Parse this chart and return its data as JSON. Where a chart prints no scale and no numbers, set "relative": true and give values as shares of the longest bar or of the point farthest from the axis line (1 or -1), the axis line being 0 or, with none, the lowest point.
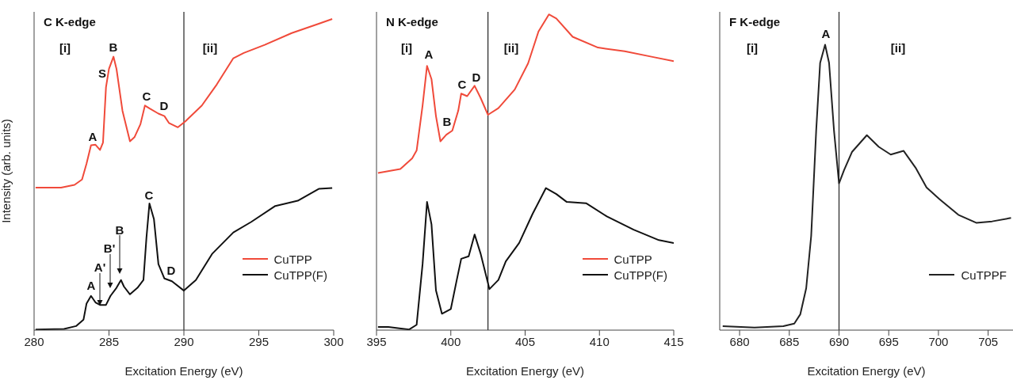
{
  "chart_data": [
    {
      "type": "line",
      "title": "C K-edge",
      "xlabel": "Excitation Energy (eV)",
      "ylabel": "Intensity (arb. units)",
      "relative": true,
      "xlim": [
        280,
        300
      ],
      "xticks": [
        280,
        285,
        290,
        295,
        300
      ],
      "legend": "bottom right",
      "line_style": "solid",
      "marker": "none",
      "series": [
        {
          "name": "CuTPP",
          "color": "#f04a3a",
          "x": [
            280.1,
            281.8,
            282.7,
            283.2,
            283.5,
            283.8,
            284.1,
            284.4,
            284.6,
            284.8,
            285.0,
            285.3,
            285.5,
            285.9,
            286.4,
            286.7,
            287.1,
            287.4,
            287.7,
            288.3,
            288.7,
            289.0,
            289.6,
            290.1,
            291.2,
            292.2,
            293.3,
            294.0,
            295.4,
            297.2,
            299.0,
            299.9
          ],
          "values": [
            0.458,
            0.458,
            0.467,
            0.484,
            0.535,
            0.594,
            0.596,
            0.579,
            0.603,
            0.781,
            0.84,
            0.879,
            0.84,
            0.705,
            0.607,
            0.62,
            0.662,
            0.722,
            0.713,
            0.696,
            0.688,
            0.666,
            0.652,
            0.671,
            0.722,
            0.79,
            0.874,
            0.891,
            0.917,
            0.955,
            0.985,
            1.0
          ]
        },
        {
          "name": "CuTPP(F)",
          "color": "#111111",
          "x": [
            280.1,
            282.0,
            282.8,
            283.3,
            283.5,
            283.8,
            284.1,
            284.4,
            284.8,
            285.1,
            285.5,
            285.8,
            286.0,
            286.4,
            286.9,
            287.3,
            287.5,
            287.7,
            288.0,
            288.3,
            288.7,
            289.2,
            290.0,
            290.8,
            291.9,
            293.3,
            294.5,
            296.1,
            297.6,
            299.0,
            299.9
          ],
          "values": [
            0.002,
            0.004,
            0.013,
            0.034,
            0.085,
            0.11,
            0.089,
            0.081,
            0.081,
            0.11,
            0.136,
            0.161,
            0.14,
            0.115,
            0.136,
            0.161,
            0.297,
            0.407,
            0.357,
            0.212,
            0.166,
            0.157,
            0.127,
            0.161,
            0.246,
            0.314,
            0.348,
            0.399,
            0.416,
            0.454,
            0.457
          ]
        }
      ],
      "ref_lines": [
        {
          "axis": "x",
          "value": 290
        }
      ],
      "annotations": [
        "[i]",
        "[ii]",
        "A",
        "S",
        "B",
        "C",
        "D",
        "A",
        "A'",
        "B'",
        "B",
        "C",
        "D"
      ]
    },
    {
      "type": "line",
      "title": "N K-edge",
      "xlabel": "Excitation Energy (eV)",
      "relative": true,
      "xlim": [
        395,
        415
      ],
      "xticks": [
        395,
        400,
        405,
        410,
        415
      ],
      "legend": "bottom right",
      "line_style": "solid",
      "marker": "none",
      "series": [
        {
          "name": "CuTPP",
          "color": "#f04a3a",
          "x": [
            395.1,
            396.6,
            397.4,
            397.7,
            398.1,
            398.4,
            398.7,
            399.0,
            399.3,
            399.7,
            400.1,
            400.5,
            400.7,
            401.1,
            401.6,
            402.0,
            402.5,
            403.2,
            404.3,
            405.2,
            405.9,
            406.6,
            407.1,
            408.2,
            409.9,
            411.7,
            413.5,
            415.0
          ],
          "values": [
            0.498,
            0.51,
            0.544,
            0.569,
            0.711,
            0.837,
            0.795,
            0.678,
            0.598,
            0.619,
            0.632,
            0.695,
            0.749,
            0.741,
            0.774,
            0.736,
            0.682,
            0.703,
            0.762,
            0.845,
            0.946,
            1.0,
            0.987,
            0.929,
            0.895,
            0.883,
            0.866,
            0.852
          ]
        },
        {
          "name": "CuTPP(F)",
          "color": "#111111",
          "x": [
            395.1,
            395.8,
            397.2,
            397.7,
            398.1,
            398.4,
            398.7,
            399.0,
            399.4,
            400.0,
            400.4,
            400.7,
            401.2,
            401.6,
            402.0,
            402.6,
            403.2,
            403.7,
            404.6,
            405.5,
            406.4,
            407.1,
            407.8,
            409.1,
            410.5,
            412.3,
            414.0,
            415.0
          ],
          "values": [
            0.01,
            0.01,
            0.002,
            0.017,
            0.209,
            0.406,
            0.335,
            0.126,
            0.052,
            0.067,
            0.159,
            0.226,
            0.234,
            0.303,
            0.243,
            0.13,
            0.159,
            0.218,
            0.276,
            0.368,
            0.45,
            0.431,
            0.406,
            0.402,
            0.36,
            0.318,
            0.285,
            0.276
          ]
        }
      ],
      "ref_lines": [
        {
          "axis": "x",
          "value": 402.5
        }
      ],
      "annotations": [
        "[i]",
        "[ii]",
        "A",
        "B",
        "C",
        "D"
      ]
    },
    {
      "type": "line",
      "title": "F K-edge",
      "xlabel": "Excitation Energy (eV)",
      "relative": true,
      "xlim": [
        678,
        707.5
      ],
      "xticks": [
        680,
        685,
        690,
        695,
        700,
        705
      ],
      "legend": "bottom right",
      "line_style": "solid",
      "marker": "none",
      "series": [
        {
          "name": "CuTPPF",
          "color": "#222222",
          "x": [
            678.3,
            681.5,
            684.4,
            685.5,
            686.1,
            686.7,
            687.2,
            687.7,
            688.1,
            688.6,
            689.0,
            689.5,
            690.0,
            690.5,
            691.3,
            692.8,
            694.0,
            695.2,
            696.5,
            697.7,
            698.8,
            700.1,
            702.0,
            703.8,
            705.4,
            707.3
          ],
          "values": [
            0.014,
            0.009,
            0.014,
            0.023,
            0.055,
            0.147,
            0.33,
            0.697,
            0.936,
            1.0,
            0.936,
            0.697,
            0.514,
            0.56,
            0.624,
            0.683,
            0.642,
            0.615,
            0.628,
            0.569,
            0.5,
            0.459,
            0.404,
            0.376,
            0.381,
            0.393
          ]
        }
      ],
      "ref_lines": [
        {
          "axis": "x",
          "value": 690
        }
      ],
      "annotations": [
        "[i]",
        "[ii]",
        "A"
      ]
    }
  ]
}
